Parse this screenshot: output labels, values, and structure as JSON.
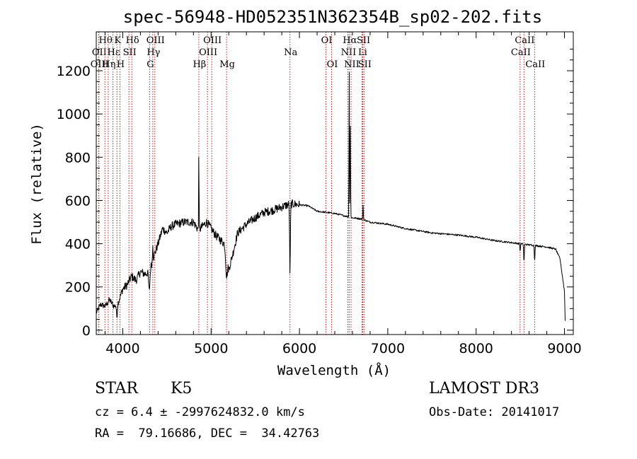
{
  "chart_data": {
    "type": "line",
    "title": "spec-56948-HD052351N362354B_sp02-202.fits",
    "xlabel": "Wavelength (Å)",
    "ylabel": "Flux (relative)",
    "xlim": [
      3700,
      9100
    ],
    "ylim": [
      -20,
      1380
    ],
    "x_ticks": [
      4000,
      5000,
      6000,
      7000,
      8000,
      9000
    ],
    "y_ticks": [
      0,
      200,
      400,
      600,
      800,
      1000,
      1200
    ],
    "x_tick_labels": [
      "4000",
      "5000",
      "6000",
      "7000",
      "8000",
      "9000"
    ],
    "y_tick_labels": [
      "0",
      "200",
      "400",
      "600",
      "800",
      "1000",
      "1200"
    ],
    "spectral_lines": [
      {
        "label": "OII",
        "wavelength": 3727,
        "row": 1
      },
      {
        "label": "Hθ",
        "wavelength": 3798,
        "row": 0
      },
      {
        "label": "OIII",
        "wavelength": 3730,
        "row": 2
      },
      {
        "label": "Hε",
        "wavelength": 3889,
        "row": 1
      },
      {
        "label": "Hη",
        "wavelength": 3835,
        "row": 2
      },
      {
        "label": "K",
        "wavelength": 3934,
        "row": 0
      },
      {
        "label": "H",
        "wavelength": 3968,
        "row": 2
      },
      {
        "label": "SII",
        "wavelength": 4070,
        "row": 1
      },
      {
        "label": "Hδ",
        "wavelength": 4102,
        "row": 0
      },
      {
        "label": "OIII",
        "wavelength": 4363,
        "row": 0
      },
      {
        "label": "Hγ",
        "wavelength": 4340,
        "row": 1
      },
      {
        "label": "G",
        "wavelength": 4304,
        "row": 2
      },
      {
        "label": "OIII",
        "wavelength": 5007,
        "row": 0
      },
      {
        "label": "OIII",
        "wavelength": 4959,
        "row": 1
      },
      {
        "label": "Hβ",
        "wavelength": 4861,
        "row": 2
      },
      {
        "label": "Mg",
        "wavelength": 5175,
        "row": 2
      },
      {
        "label": "Na",
        "wavelength": 5893,
        "row": 1
      },
      {
        "label": "OI",
        "wavelength": 6300,
        "row": 0
      },
      {
        "label": "OI",
        "wavelength": 6364,
        "row": 2
      },
      {
        "label": "Hα",
        "wavelength": 6563,
        "row": 0
      },
      {
        "label": "NII",
        "wavelength": 6548,
        "row": 1
      },
      {
        "label": "NII",
        "wavelength": 6584,
        "row": 2
      },
      {
        "label": "SII",
        "wavelength": 6717,
        "row": 0
      },
      {
        "label": "Li",
        "wavelength": 6708,
        "row": 1
      },
      {
        "label": "SII",
        "wavelength": 6731,
        "row": 2
      },
      {
        "label": "CaII",
        "wavelength": 8542,
        "row": 0
      },
      {
        "label": "CaII",
        "wavelength": 8498,
        "row": 1
      },
      {
        "label": "CaII",
        "wavelength": 8662,
        "row": 2
      }
    ],
    "continuum": [
      [
        3700,
        80
      ],
      [
        3750,
        120
      ],
      [
        3800,
        110
      ],
      [
        3850,
        140
      ],
      [
        3900,
        110
      ],
      [
        3950,
        130
      ],
      [
        4000,
        190
      ],
      [
        4050,
        210
      ],
      [
        4100,
        250
      ],
      [
        4150,
        230
      ],
      [
        4200,
        270
      ],
      [
        4250,
        260
      ],
      [
        4300,
        270
      ],
      [
        4350,
        340
      ],
      [
        4400,
        400
      ],
      [
        4450,
        470
      ],
      [
        4500,
        450
      ],
      [
        4550,
        480
      ],
      [
        4600,
        490
      ],
      [
        4700,
        500
      ],
      [
        4800,
        500
      ],
      [
        4860,
        460
      ],
      [
        4900,
        480
      ],
      [
        4950,
        500
      ],
      [
        5000,
        470
      ],
      [
        5050,
        440
      ],
      [
        5100,
        420
      ],
      [
        5150,
        400
      ],
      [
        5200,
        280
      ],
      [
        5250,
        360
      ],
      [
        5300,
        450
      ],
      [
        5400,
        490
      ],
      [
        5500,
        520
      ],
      [
        5600,
        545
      ],
      [
        5700,
        555
      ],
      [
        5800,
        570
      ],
      [
        5900,
        585
      ],
      [
        6000,
        580
      ],
      [
        6100,
        575
      ],
      [
        6200,
        550
      ],
      [
        6300,
        545
      ],
      [
        6400,
        540
      ],
      [
        6500,
        530
      ],
      [
        6600,
        520
      ],
      [
        6700,
        515
      ],
      [
        6800,
        500
      ],
      [
        7000,
        490
      ],
      [
        7200,
        470
      ],
      [
        7500,
        450
      ],
      [
        7800,
        440
      ],
      [
        8000,
        430
      ],
      [
        8200,
        415
      ],
      [
        8400,
        405
      ],
      [
        8600,
        395
      ],
      [
        8800,
        385
      ],
      [
        8900,
        375
      ],
      [
        8950,
        330
      ],
      [
        9000,
        180
      ],
      [
        9010,
        10
      ]
    ],
    "features": [
      {
        "wavelength": 3933,
        "depth": -60,
        "width": 8
      },
      {
        "wavelength": 4300,
        "depth": -90,
        "width": 10
      },
      {
        "wavelength": 4340,
        "depth": 80,
        "width": 4
      },
      {
        "wavelength": 4861,
        "depth": 400,
        "width": 3
      },
      {
        "wavelength": 5175,
        "depth": -90,
        "width": 12
      },
      {
        "wavelength": 5893,
        "depth": -320,
        "width": 6
      },
      {
        "wavelength": 6563,
        "depth": 750,
        "width": 3
      },
      {
        "wavelength": 6575,
        "depth": 450,
        "width": 4
      },
      {
        "wavelength": 6720,
        "depth": 70,
        "width": 4
      },
      {
        "wavelength": 8498,
        "depth": -40,
        "width": 4
      },
      {
        "wavelength": 8542,
        "depth": -85,
        "width": 5
      },
      {
        "wavelength": 8662,
        "depth": -70,
        "width": 5
      }
    ]
  },
  "info": {
    "object_class": "STAR",
    "subclass": "K5",
    "survey": "LAMOST DR3",
    "redshift_line": "cz = 6.4 ± -2997624832.0 km/s",
    "obs_date_line": "Obs-Date: 20141017",
    "coords_line": "RA =  79.16686, DEC =  34.42763"
  },
  "colors": {
    "spectrum": "#000000",
    "line_markers": "#b22222",
    "axes": "#000000",
    "background": "#ffffff"
  }
}
